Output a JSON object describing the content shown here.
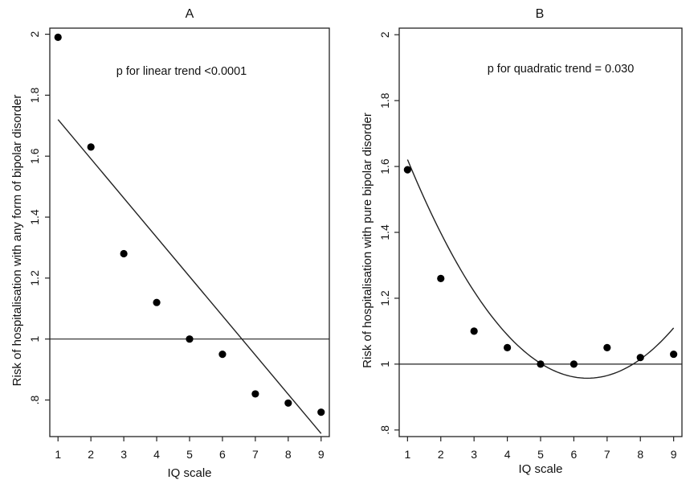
{
  "chart_data": [
    {
      "type": "scatter",
      "title": "A",
      "xlabel": "IQ scale",
      "ylabel": "Risk of hospitalisation with any form of bipolar disorder",
      "annotation": "p for linear trend <0.0001",
      "x": [
        1,
        2,
        3,
        4,
        5,
        6,
        7,
        8,
        9
      ],
      "y": [
        1.99,
        1.63,
        1.28,
        1.12,
        1.0,
        0.95,
        0.82,
        0.79,
        0.76
      ],
      "xlim": [
        0.75,
        9.25
      ],
      "ylim": [
        0.68,
        2.02
      ],
      "xticks": [
        1,
        2,
        3,
        4,
        5,
        6,
        7,
        8,
        9
      ],
      "yticks": [
        0.8,
        1.0,
        1.2,
        1.4,
        1.6,
        1.8,
        2.0
      ],
      "ytick_labels": [
        ".8",
        "1",
        "1.2",
        "1.4",
        "1.6",
        "1.8",
        "2"
      ],
      "reference_line_y": 1.0,
      "fit": {
        "kind": "linear",
        "x_start": 1,
        "x_end": 9,
        "y_start": 1.72,
        "y_end": 0.69
      },
      "grid": false
    },
    {
      "type": "scatter",
      "title": "B",
      "xlabel": "IQ scale",
      "ylabel": "Risk of hospitalisation with pure bipolar disorder",
      "annotation": "p for quadratic trend = 0.030",
      "x": [
        1,
        2,
        3,
        4,
        5,
        6,
        7,
        8,
        9
      ],
      "y": [
        1.59,
        1.26,
        1.1,
        1.05,
        1.0,
        1.0,
        1.05,
        1.02,
        1.03
      ],
      "xlim": [
        0.75,
        9.25
      ],
      "ylim": [
        0.78,
        2.02
      ],
      "xticks": [
        1,
        2,
        3,
        4,
        5,
        6,
        7,
        8,
        9
      ],
      "yticks": [
        0.8,
        1.0,
        1.2,
        1.4,
        1.6,
        1.8,
        2.0
      ],
      "ytick_labels": [
        ".8",
        "1",
        "1.2",
        "1.4",
        "1.6",
        "1.8",
        "2"
      ],
      "reference_line_y": 1.0,
      "fit": {
        "kind": "quadratic",
        "x_start": 1,
        "x_end": 9,
        "a": 0.0227,
        "b": -0.2909,
        "c": 1.8892
      },
      "grid": false
    }
  ]
}
